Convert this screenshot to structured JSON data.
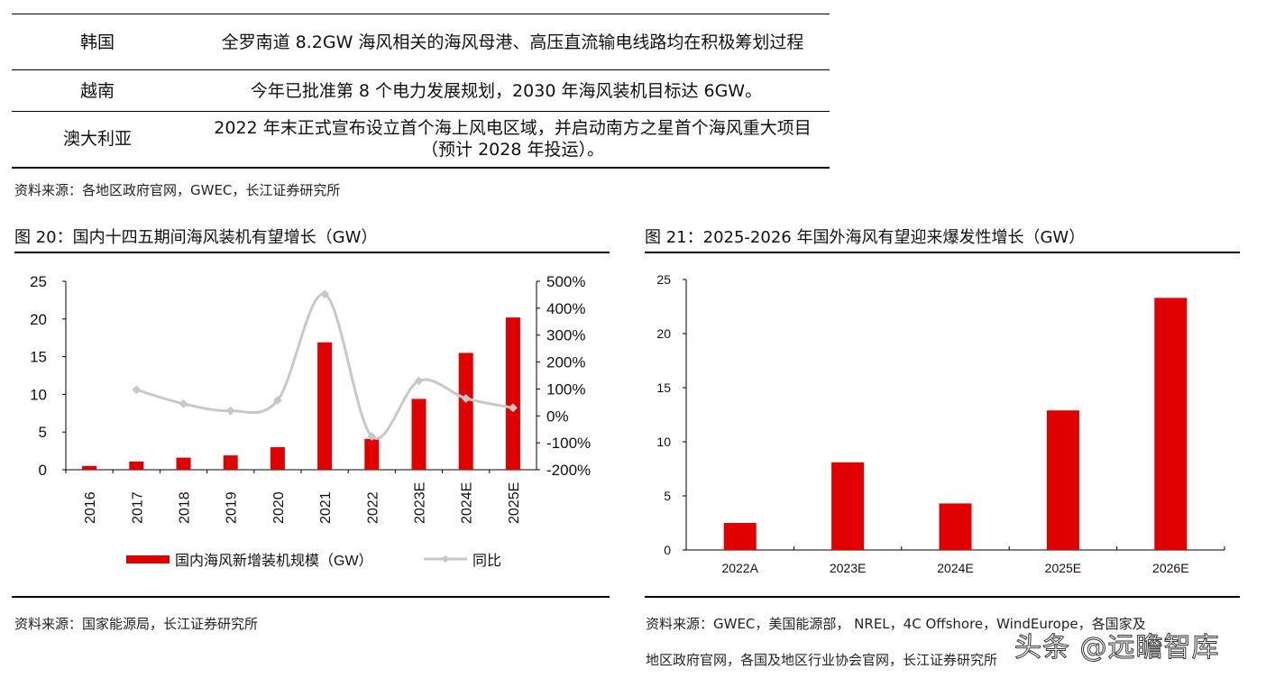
{
  "table": {
    "rows": [
      {
        "country": "韩国",
        "text": "全罗南道 8.2GW 海风相关的海风母港、高压直流输电线路均在积极筹划过程"
      },
      {
        "country": "越南",
        "text": "今年已批准第 8 个电力发展规划，2030 年海风装机目标达 6GW。"
      },
      {
        "country": "澳大利亚",
        "text": "2022 年末正式宣布设立首个海上风电区域，并启动南方之星首个海风重大项目（预计 2028 年投运）。"
      }
    ],
    "source": "资料来源：各地区政府官网，GWEC，长江证券研究所"
  },
  "figure20": {
    "title": "图 20：国内十四五期间海风装机有望增长（GW）",
    "source": "资料来源：国家能源局，长江证券研究所"
  },
  "figure21": {
    "title": "图 21：2025-2026 年国外海风有望迎来爆发性增长（GW）",
    "source_line1": "资料来源：GWEC，美国能源部， NREL，4C Offshore，WindEurope，各国家及",
    "source_line2": "地区政府官网，各国及地区行业协会官网，长江证券研究所"
  },
  "watermark": "头条 @远瞻智库",
  "chart_data": [
    {
      "type": "bar+line",
      "categories": [
        "2016",
        "2017",
        "2018",
        "2019",
        "2020",
        "2021",
        "2022",
        "2023E",
        "2024E",
        "2025E"
      ],
      "series": [
        {
          "name": "国内海风新增装机规模（GW）",
          "type": "bar",
          "axis": "left",
          "color": "#e00000",
          "values": [
            0.5,
            1.1,
            1.6,
            1.9,
            3.0,
            16.9,
            4.1,
            9.4,
            15.5,
            20.2
          ]
        },
        {
          "name": "同比",
          "type": "line",
          "axis": "right",
          "color": "#c8c8c8",
          "values": [
            null,
            97,
            45,
            19,
            58,
            452,
            -76,
            130,
            65,
            30
          ]
        }
      ],
      "ylim_left": [
        0,
        25
      ],
      "yticks_left": [
        0,
        5,
        10,
        15,
        20,
        25
      ],
      "ylim_right": [
        -200,
        500
      ],
      "yticks_right": [
        "-200%",
        "-100%",
        "0%",
        "100%",
        "200%",
        "300%",
        "400%",
        "500%"
      ],
      "legend": "bottom",
      "grid": false
    },
    {
      "type": "bar",
      "categories": [
        "2022A",
        "2023E",
        "2024E",
        "2025E",
        "2026E"
      ],
      "values": [
        2.5,
        8.1,
        4.3,
        12.9,
        23.3
      ],
      "color": "#e00000",
      "ylim": [
        0,
        25
      ],
      "yticks": [
        0,
        5,
        10,
        15,
        20,
        25
      ],
      "grid": false
    }
  ]
}
